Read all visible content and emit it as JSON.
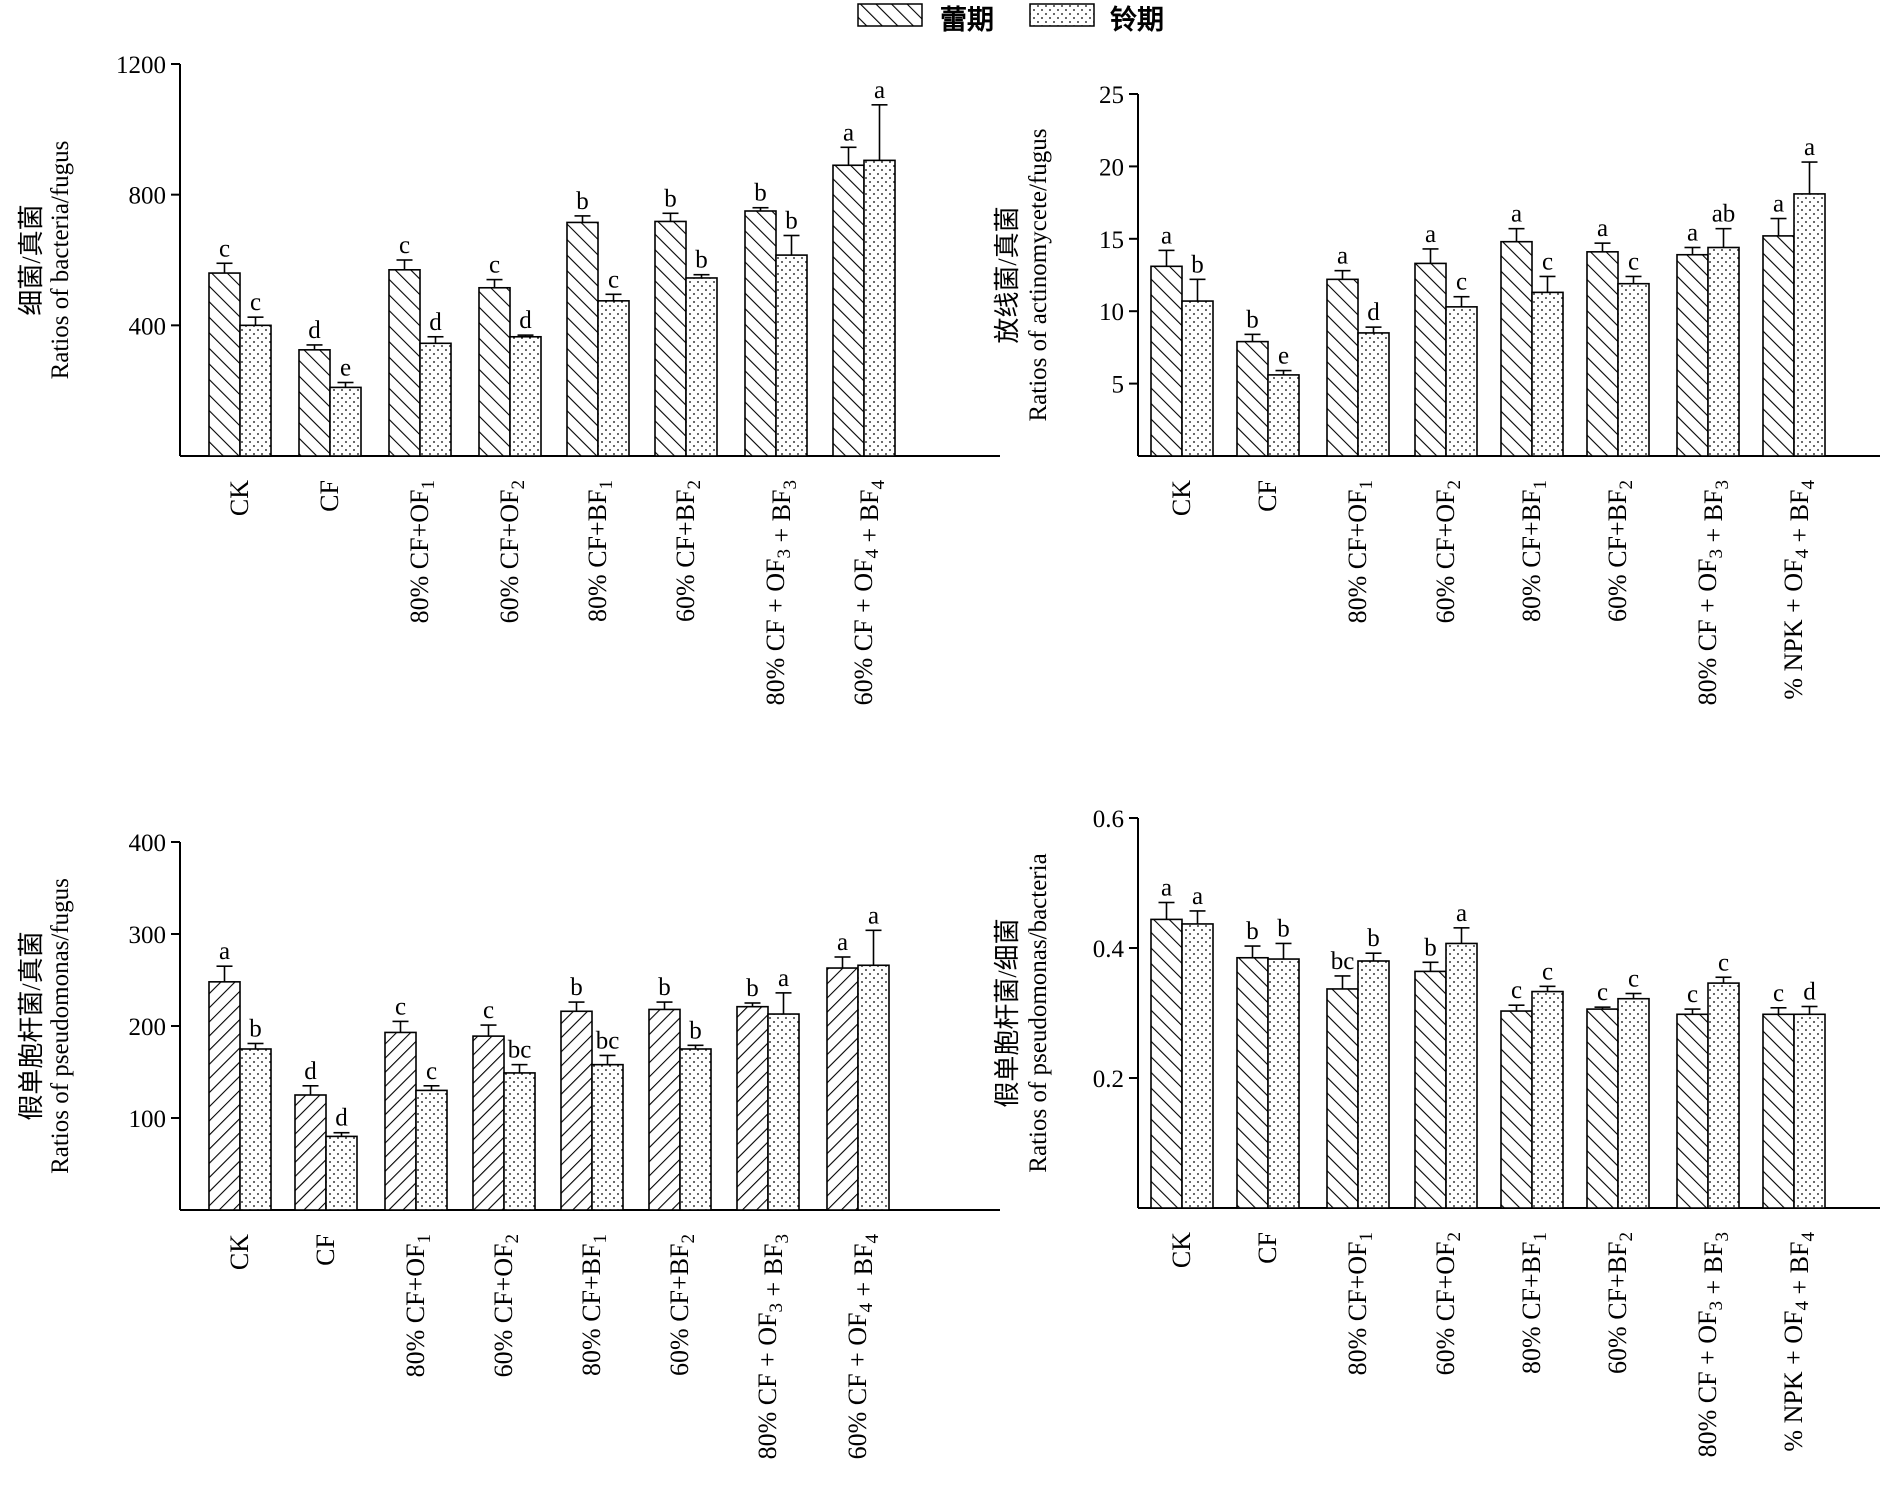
{
  "legend": [
    {
      "name": "蕾期",
      "pattern": "diag-hatch"
    },
    {
      "name": "铃期",
      "pattern": "dots"
    }
  ],
  "chart_data": [
    {
      "type": "bar",
      "ylabel_cn": "细菌/真菌",
      "ylabel_en": "Ratios of bacteria/fugus",
      "ylim": [
        0,
        1200
      ],
      "yticks": [
        400,
        800,
        1200
      ],
      "categories": [
        "CK",
        "CF",
        "80% CF+OF1",
        "60% CF+OF2",
        "80% CF+BF1",
        "60% CF+BF2",
        "80% CF + OF3 + BF3",
        "60% CF + OF4 + BF4"
      ],
      "category_subscripts": [
        "",
        "",
        "1",
        "2",
        "1",
        "2",
        "3|3",
        "4|4"
      ],
      "series": [
        {
          "name": "蕾期",
          "values": [
            560,
            325,
            570,
            515,
            715,
            718,
            750,
            890
          ],
          "errors": [
            30,
            15,
            30,
            25,
            20,
            25,
            10,
            55
          ],
          "letters": [
            "c",
            "d",
            "c",
            "c",
            "b",
            "b",
            "b",
            "a"
          ]
        },
        {
          "name": "铃期",
          "values": [
            400,
            210,
            345,
            365,
            475,
            545,
            615,
            905
          ],
          "errors": [
            25,
            15,
            20,
            5,
            20,
            10,
            60,
            170
          ],
          "letters": [
            "c",
            "e",
            "d",
            "d",
            "c",
            "b",
            "b",
            "a"
          ]
        }
      ]
    },
    {
      "type": "bar",
      "ylabel_cn": "放线菌/真菌",
      "ylabel_en": "Ratios of actinomycete/fugus",
      "ylim": [
        0,
        25
      ],
      "yticks": [
        5,
        10,
        15,
        20,
        25
      ],
      "categories": [
        "CK",
        "CF",
        "80% CF+OF1",
        "60% CF+OF2",
        "80% CF+BF1",
        "60% CF+BF2",
        "80% CF + OF3 + BF3",
        "% NPK + OF4 + BF4"
      ],
      "category_subscripts": [
        "",
        "",
        "1",
        "2",
        "1",
        "2",
        "3|3",
        "4|4"
      ],
      "series": [
        {
          "name": "蕾期",
          "values": [
            13.1,
            7.9,
            12.2,
            13.3,
            14.8,
            14.1,
            13.9,
            15.2
          ],
          "errors": [
            1.1,
            0.5,
            0.6,
            1.0,
            0.9,
            0.6,
            0.5,
            1.2
          ],
          "letters": [
            "a",
            "b",
            "a",
            "a",
            "a",
            "a",
            "a",
            "a"
          ]
        },
        {
          "name": "铃期",
          "values": [
            10.7,
            5.6,
            8.5,
            10.3,
            11.3,
            11.9,
            14.4,
            18.1
          ],
          "errors": [
            1.5,
            0.3,
            0.4,
            0.7,
            1.1,
            0.5,
            1.3,
            2.2
          ],
          "letters": [
            "b",
            "e",
            "d",
            "c",
            "c",
            "c",
            "ab",
            "a"
          ]
        }
      ]
    },
    {
      "type": "bar",
      "ylabel_cn": "假单胞杆菌/真菌",
      "ylabel_en": "Ratios of pseudomonas/fugus",
      "ylim": [
        0,
        400
      ],
      "yticks": [
        100,
        200,
        300,
        400
      ],
      "categories": [
        "CK",
        "CF",
        "80% CF+OF1",
        "60% CF+OF2",
        "80% CF+BF1",
        "60% CF+BF2",
        "80% CF + OF3 + BF3",
        "60% CF + OF4 + BF4"
      ],
      "category_subscripts": [
        "",
        "",
        "1",
        "2",
        "1",
        "2",
        "3|3",
        "4|4"
      ],
      "series": [
        {
          "name": "蕾期",
          "values": [
            248,
            125,
            193,
            189,
            216,
            218,
            221,
            263
          ],
          "errors": [
            17,
            10,
            12,
            12,
            10,
            8,
            4,
            12
          ],
          "letters": [
            "a",
            "d",
            "c",
            "c",
            "b",
            "b",
            "b",
            "a"
          ]
        },
        {
          "name": "铃期",
          "values": [
            175,
            80,
            130,
            149,
            158,
            175,
            213,
            266
          ],
          "errors": [
            6,
            4,
            5,
            9,
            10,
            4,
            23,
            38
          ],
          "letters": [
            "b",
            "d",
            "c",
            "bc",
            "bc",
            "b",
            "a",
            "a"
          ]
        }
      ]
    },
    {
      "type": "bar",
      "ylabel_cn": "假单胞杆菌/细菌",
      "ylabel_en": "Ratios of pseudomonas/bacteria",
      "ylim": [
        0,
        0.6
      ],
      "yticks": [
        0.2,
        0.4,
        0.6
      ],
      "categories": [
        "CK",
        "CF",
        "80% CF+OF1",
        "60% CF+OF2",
        "80% CF+BF1",
        "60% CF+BF2",
        "80% CF + OF3 + BF3",
        "% NPK + OF4 + BF4"
      ],
      "category_subscripts": [
        "",
        "",
        "1",
        "2",
        "1",
        "2",
        "3|3",
        "4|4"
      ],
      "series": [
        {
          "name": "蕾期",
          "values": [
            0.444,
            0.385,
            0.337,
            0.364,
            0.303,
            0.306,
            0.298,
            0.298
          ],
          "errors": [
            0.026,
            0.018,
            0.02,
            0.014,
            0.009,
            0.003,
            0.008,
            0.01
          ],
          "letters": [
            "a",
            "b",
            "bc",
            "b",
            "c",
            "c",
            "c",
            "c"
          ]
        },
        {
          "name": "铃期",
          "values": [
            0.437,
            0.383,
            0.38,
            0.407,
            0.333,
            0.322,
            0.346,
            0.298
          ],
          "errors": [
            0.02,
            0.024,
            0.012,
            0.024,
            0.008,
            0.008,
            0.009,
            0.012
          ],
          "letters": [
            "a",
            "b",
            "b",
            "a",
            "c",
            "c",
            "c",
            "d"
          ]
        }
      ]
    }
  ]
}
